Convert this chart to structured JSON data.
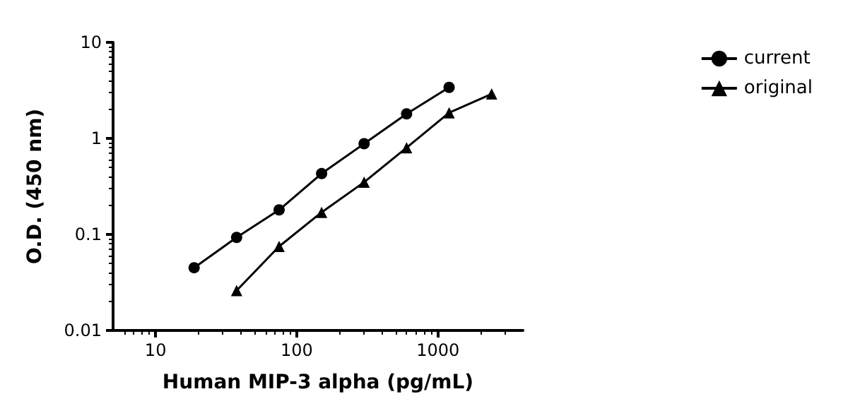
{
  "chart_data": {
    "type": "line",
    "xlabel": "Human MIP-3 alpha (pg/mL)",
    "ylabel": "O.D. (450 nm)",
    "log": "xy",
    "xlim": [
      5,
      4000
    ],
    "xticks": [
      10,
      100,
      1000
    ],
    "ylim": [
      0.01,
      10
    ],
    "yticks": [
      0.01,
      0.1,
      1,
      10
    ],
    "grid": false,
    "legend": "top right",
    "series": [
      {
        "name": "current",
        "color": "#000000",
        "marker": "circle",
        "x": [
          18.75,
          37.5,
          75,
          150,
          300,
          600,
          1200
        ],
        "values": [
          0.045,
          0.093,
          0.18,
          0.43,
          0.88,
          1.8,
          3.4
        ]
      },
      {
        "name": "original",
        "color": "#000000",
        "marker": "triangle",
        "x": [
          37.5,
          75,
          150,
          300,
          600,
          1200,
          2400
        ],
        "values": [
          0.026,
          0.075,
          0.17,
          0.35,
          0.8,
          1.85,
          2.9
        ]
      }
    ]
  }
}
